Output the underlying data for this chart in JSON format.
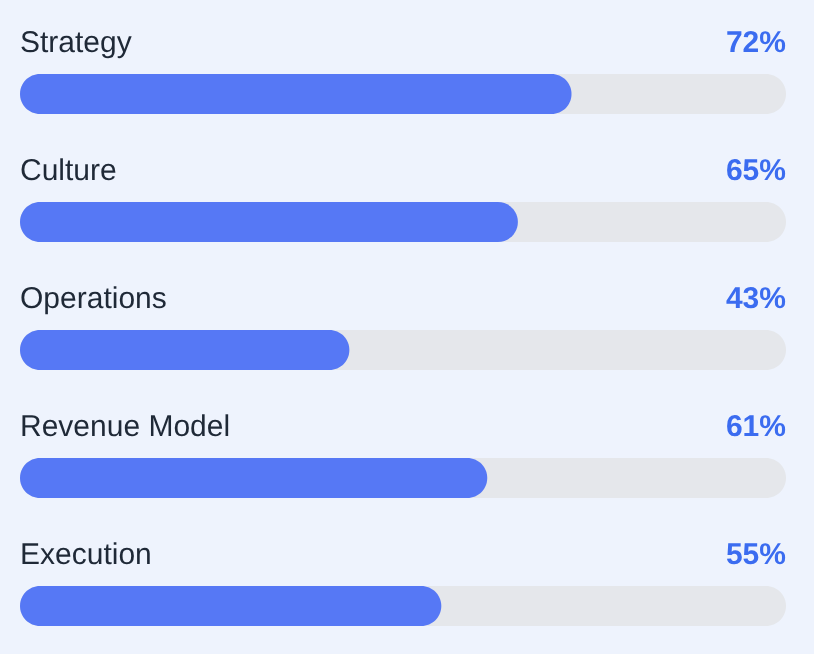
{
  "chart_data": {
    "type": "bar",
    "orientation": "horizontal",
    "categories": [
      "Strategy",
      "Culture",
      "Operations",
      "Revenue Model",
      "Execution"
    ],
    "values": [
      72,
      65,
      43,
      61,
      55
    ],
    "value_labels": [
      "72%",
      "65%",
      "43%",
      "61%",
      "55%"
    ],
    "color": "#5678f5",
    "xlim": [
      0,
      100
    ]
  }
}
